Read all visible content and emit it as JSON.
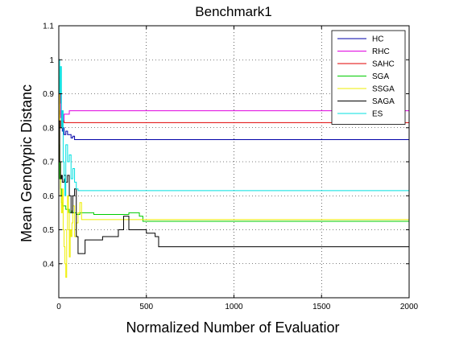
{
  "chart_data": {
    "type": "line",
    "title": "Benchmark1",
    "xlabel": "Normalized Number of Evaluatior",
    "ylabel": "Mean Genotypic Distanc",
    "xlim": [
      0,
      2000
    ],
    "ylim": [
      0.3,
      1.1
    ],
    "xticks": [
      0,
      500,
      1000,
      1500,
      2000
    ],
    "yticks": [
      0.4,
      0.5,
      0.6,
      0.7,
      0.8,
      0.9,
      1,
      1.1
    ],
    "xtick_labels": [
      "0",
      "500",
      "1000",
      "1500",
      "2000"
    ],
    "ytick_labels": [
      "0.4",
      "0.5",
      "0.6",
      "0.7",
      "0.8",
      "0.9",
      "1",
      "1.1"
    ],
    "grid": true,
    "legend_position": "top-right",
    "series": [
      {
        "name": "HC",
        "color": "#0000a8",
        "x": [
          0,
          5,
          10,
          15,
          20,
          25,
          30,
          40,
          50,
          60,
          70,
          80,
          90,
          2000
        ],
        "y": [
          0.95,
          0.9,
          0.84,
          0.8,
          0.79,
          0.8,
          0.78,
          0.79,
          0.78,
          0.78,
          0.77,
          0.775,
          0.765,
          0.765
        ]
      },
      {
        "name": "RHC",
        "color": "#e000e0",
        "x": [
          0,
          5,
          10,
          15,
          20,
          30,
          40,
          50,
          60,
          80,
          2000
        ],
        "y": [
          0.9,
          0.87,
          0.83,
          0.85,
          0.82,
          0.84,
          0.84,
          0.84,
          0.85,
          0.85,
          0.85
        ]
      },
      {
        "name": "SAHC",
        "color": "#e00000",
        "x": [
          0,
          5,
          10,
          20,
          30,
          40,
          2000
        ],
        "y": [
          0.85,
          0.82,
          0.8,
          0.82,
          0.815,
          0.815,
          0.815
        ]
      },
      {
        "name": "SGA",
        "color": "#00cc00",
        "x": [
          0,
          5,
          10,
          15,
          20,
          30,
          40,
          50,
          60,
          70,
          80,
          90,
          100,
          120,
          200,
          300,
          400,
          460,
          480,
          500,
          2000
        ],
        "y": [
          0.75,
          0.65,
          0.62,
          0.58,
          0.57,
          0.57,
          0.56,
          0.56,
          0.55,
          0.555,
          0.55,
          0.55,
          0.545,
          0.55,
          0.545,
          0.545,
          0.55,
          0.54,
          0.525,
          0.525,
          0.525
        ]
      },
      {
        "name": "SSGA",
        "color": "#eeee00",
        "x": [
          0,
          5,
          10,
          15,
          20,
          25,
          30,
          35,
          40,
          45,
          50,
          55,
          60,
          65,
          70,
          75,
          80,
          90,
          100,
          110,
          120,
          130,
          2000
        ],
        "y": [
          0.97,
          0.7,
          0.6,
          0.55,
          0.62,
          0.5,
          0.45,
          0.4,
          0.36,
          0.5,
          0.6,
          0.55,
          0.42,
          0.5,
          0.48,
          0.52,
          0.57,
          0.48,
          0.52,
          0.55,
          0.58,
          0.53,
          0.53
        ]
      },
      {
        "name": "SAGA",
        "color": "#000000",
        "x": [
          0,
          5,
          10,
          15,
          20,
          30,
          40,
          50,
          60,
          70,
          80,
          90,
          100,
          110,
          120,
          150,
          200,
          250,
          300,
          340,
          370,
          400,
          450,
          500,
          550,
          570,
          2000
        ],
        "y": [
          0.82,
          0.7,
          0.65,
          0.66,
          0.64,
          0.66,
          0.64,
          0.66,
          0.6,
          0.55,
          0.6,
          0.62,
          0.48,
          0.43,
          0.43,
          0.47,
          0.47,
          0.48,
          0.48,
          0.5,
          0.54,
          0.5,
          0.5,
          0.49,
          0.48,
          0.45,
          0.45
        ]
      },
      {
        "name": "ES",
        "color": "#00e0e0",
        "x": [
          0,
          5,
          10,
          15,
          20,
          25,
          30,
          35,
          40,
          50,
          60,
          70,
          80,
          90,
          100,
          110,
          2000
        ],
        "y": [
          1.0,
          0.9,
          0.98,
          0.8,
          0.85,
          0.7,
          0.65,
          0.6,
          0.75,
          0.7,
          0.72,
          0.65,
          0.68,
          0.64,
          0.62,
          0.615,
          0.615
        ]
      }
    ]
  }
}
